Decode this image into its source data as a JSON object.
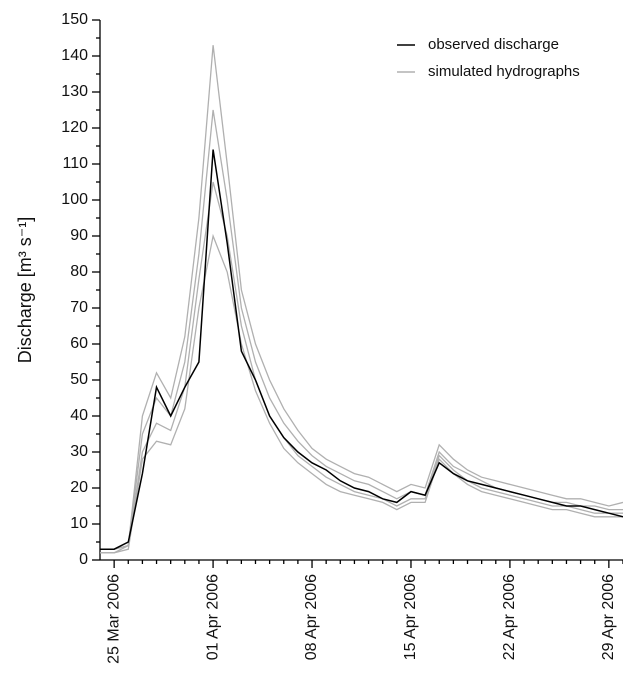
{
  "chart_data": {
    "type": "line",
    "y_label": "Discharge [m³ s⁻¹]",
    "x": [
      "2006-03-24",
      "2006-03-25",
      "2006-03-26",
      "2006-03-27",
      "2006-03-28",
      "2006-03-29",
      "2006-03-30",
      "2006-03-31",
      "2006-04-01",
      "2006-04-02",
      "2006-04-03",
      "2006-04-04",
      "2006-04-05",
      "2006-04-06",
      "2006-04-07",
      "2006-04-08",
      "2006-04-09",
      "2006-04-10",
      "2006-04-11",
      "2006-04-12",
      "2006-04-13",
      "2006-04-14",
      "2006-04-15",
      "2006-04-16",
      "2006-04-17",
      "2006-04-18",
      "2006-04-19",
      "2006-04-20",
      "2006-04-21",
      "2006-04-22",
      "2006-04-23",
      "2006-04-24",
      "2006-04-25",
      "2006-04-26",
      "2006-04-27",
      "2006-04-28",
      "2006-04-29",
      "2006-04-30"
    ],
    "simulated": {
      "name": "simulated hydrographs",
      "color": "#b0b0b0",
      "runs": [
        [
          3,
          3,
          4,
          40,
          52,
          45,
          62,
          95,
          143,
          110,
          75,
          60,
          50,
          42,
          36,
          31,
          28,
          26,
          24,
          23,
          21,
          19,
          21,
          20,
          32,
          28,
          25,
          23,
          22,
          21,
          20,
          19,
          18,
          17,
          17,
          16,
          15,
          16
        ],
        [
          3,
          3,
          4,
          35,
          45,
          40,
          55,
          85,
          125,
          100,
          70,
          55,
          45,
          38,
          33,
          29,
          26,
          24,
          22,
          21,
          19,
          17,
          19,
          18,
          30,
          26,
          24,
          22,
          20,
          19,
          18,
          17,
          16,
          16,
          15,
          15,
          14,
          14
        ],
        [
          2,
          2,
          4,
          30,
          38,
          36,
          48,
          78,
          105,
          90,
          65,
          50,
          40,
          34,
          29,
          26,
          23,
          21,
          19,
          18,
          17,
          15,
          17,
          17,
          29,
          25,
          22,
          20,
          19,
          18,
          17,
          16,
          15,
          15,
          14,
          13,
          13,
          13
        ],
        [
          2,
          2,
          3,
          28,
          33,
          32,
          42,
          70,
          90,
          80,
          60,
          47,
          38,
          31,
          27,
          24,
          21,
          19,
          18,
          17,
          16,
          14,
          16,
          16,
          28,
          24,
          21,
          19,
          18,
          17,
          16,
          15,
          14,
          14,
          13,
          12,
          12,
          12
        ]
      ]
    },
    "series": [
      {
        "name": "observed discharge",
        "color": "#000000",
        "values": [
          3,
          3,
          5,
          24,
          48,
          40,
          48,
          55,
          114,
          88,
          58,
          50,
          40,
          34,
          30,
          27,
          25,
          22,
          20,
          19,
          17,
          16,
          19,
          18,
          27,
          24,
          22,
          21,
          20,
          19,
          18,
          17,
          16,
          15,
          15,
          14,
          13,
          12
        ]
      }
    ],
    "xlim": [
      "2006-03-24",
      "2006-04-30"
    ],
    "xticks": [
      {
        "value": "2006-03-25",
        "label": "25 Mar 2006"
      },
      {
        "value": "2006-04-01",
        "label": "01 Apr 2006"
      },
      {
        "value": "2006-04-08",
        "label": "08 Apr 2006"
      },
      {
        "value": "2006-04-15",
        "label": "15 Apr 2006"
      },
      {
        "value": "2006-04-22",
        "label": "22 Apr 2006"
      },
      {
        "value": "2006-04-29",
        "label": "29 Apr 2006"
      }
    ],
    "xticks_minor": [
      "2006-03-26",
      "2006-03-27",
      "2006-03-28",
      "2006-03-29",
      "2006-03-30",
      "2006-03-31",
      "2006-04-02",
      "2006-04-03",
      "2006-04-04",
      "2006-04-05",
      "2006-04-06",
      "2006-04-07",
      "2006-04-09",
      "2006-04-10",
      "2006-04-11",
      "2006-04-12",
      "2006-04-13",
      "2006-04-14",
      "2006-04-16",
      "2006-04-17",
      "2006-04-18",
      "2006-04-19",
      "2006-04-20",
      "2006-04-21",
      "2006-04-23",
      "2006-04-24",
      "2006-04-25",
      "2006-04-26",
      "2006-04-27",
      "2006-04-28",
      "2006-04-30"
    ],
    "ylim": [
      0,
      150
    ],
    "yticks": [
      0,
      10,
      20,
      30,
      40,
      50,
      60,
      70,
      80,
      90,
      100,
      110,
      120,
      130,
      140,
      150
    ],
    "yticks_minor": [
      5,
      15,
      25,
      35,
      45,
      55,
      65,
      75,
      85,
      95,
      105,
      115,
      125,
      135,
      145
    ],
    "legend": "upper right"
  }
}
